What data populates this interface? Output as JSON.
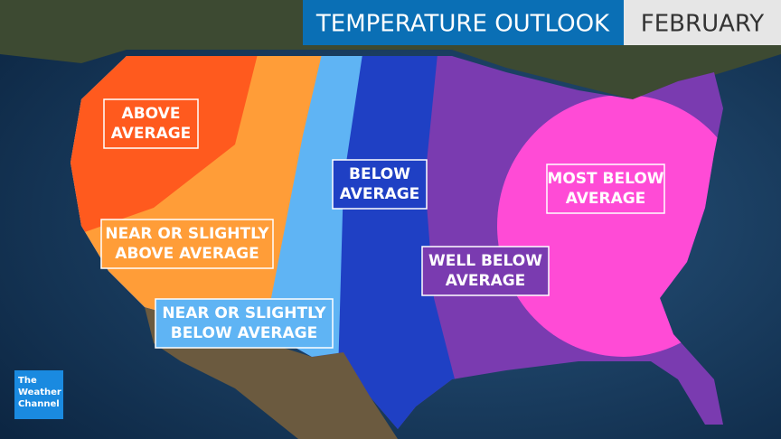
{
  "header": {
    "title": "TEMPERATURE OUTLOOK",
    "period": "FEBRUARY"
  },
  "regions": [
    {
      "label_lines": [
        "ABOVE",
        "AVERAGE"
      ],
      "color": "#ff5a1e"
    },
    {
      "label_lines": [
        "NEAR OR SLIGHTLY",
        "ABOVE AVERAGE"
      ],
      "color": "#ff9d38"
    },
    {
      "label_lines": [
        "NEAR OR SLIGHTLY",
        "BELOW AVERAGE"
      ],
      "color": "#5fb4f4"
    },
    {
      "label_lines": [
        "BELOW",
        "AVERAGE"
      ],
      "color": "#1f40c4"
    },
    {
      "label_lines": [
        "WELL BELOW",
        "AVERAGE"
      ],
      "color": "#7a3bb0"
    },
    {
      "label_lines": [
        "MOST BELOW",
        "AVERAGE"
      ],
      "color": "#ff4bd6"
    }
  ],
  "logo": {
    "lines": [
      "The",
      "Weather",
      "Channel"
    ]
  }
}
